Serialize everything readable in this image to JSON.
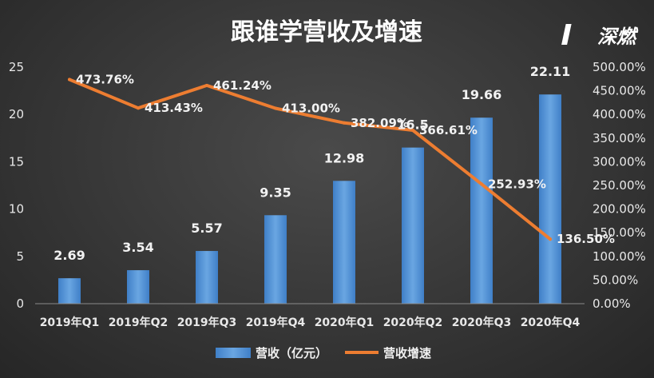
{
  "chart_data": {
    "type": "bar",
    "title": "跟谁学营收及增速",
    "watermark": "深燃",
    "categories": [
      "2019年Q1",
      "2019年Q2",
      "2019年Q3",
      "2019年Q4",
      "2020年Q1",
      "2020年Q2",
      "2020年Q3",
      "2020年Q4"
    ],
    "series": [
      {
        "name": "营收（亿元）",
        "type": "bar",
        "axis": "left",
        "color": "#5b9bd5",
        "values": [
          2.69,
          3.54,
          5.57,
          9.35,
          12.98,
          16.5,
          19.66,
          22.11
        ],
        "labels": [
          "2.69",
          "3.54",
          "5.57",
          "9.35",
          "12.98",
          "16.5",
          "19.66",
          "22.11"
        ]
      },
      {
        "name": "营收增速",
        "type": "line",
        "axis": "right",
        "color": "#ed7d31",
        "values": [
          473.76,
          413.43,
          461.24,
          413.0,
          382.09,
          366.61,
          252.93,
          136.5
        ],
        "labels": [
          "473.76%",
          "413.43%",
          "461.24%",
          "413.00%",
          "382.09%",
          "366.61%",
          "252.93%",
          "136.50%"
        ]
      }
    ],
    "y_left": {
      "min": 0,
      "max": 25,
      "ticks": [
        "0",
        "5",
        "10",
        "15",
        "20",
        "25"
      ]
    },
    "y_right": {
      "min": 0,
      "max": 500,
      "ticks": [
        "0.00%",
        "50.00%",
        "100.00%",
        "150.00%",
        "200.00%",
        "250.00%",
        "300.00%",
        "350.00%",
        "400.00%",
        "450.00%",
        "500.00%"
      ]
    },
    "grid": false,
    "legend_position": "bottom"
  }
}
